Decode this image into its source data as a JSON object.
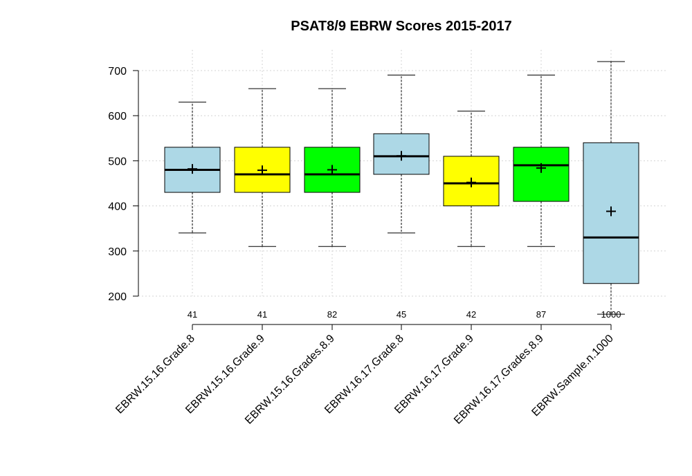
{
  "chart_data": {
    "type": "box",
    "title": "PSAT8/9 EBRW Scores 2015-2017",
    "xlabel": "",
    "ylabel": "",
    "ylim": [
      200,
      720
    ],
    "yticks": [
      "200",
      "300",
      "400",
      "500",
      "600",
      "700"
    ],
    "grid": true,
    "series": [
      {
        "category": "EBRW.15.16.Grade.8",
        "n": "41",
        "color": "#add8e6",
        "min": 340,
        "q1": 430,
        "median": 480,
        "q3": 530,
        "max": 630,
        "mean": 482
      },
      {
        "category": "EBRW.15.16.Grade.9",
        "n": "41",
        "color": "#ffff00",
        "min": 310,
        "q1": 430,
        "median": 470,
        "q3": 530,
        "max": 660,
        "mean": 479
      },
      {
        "category": "EBRW.15.16.Grades.8.9",
        "n": "82",
        "color": "#00ff00",
        "min": 310,
        "q1": 430,
        "median": 470,
        "q3": 530,
        "max": 660,
        "mean": 480
      },
      {
        "category": "EBRW.16.17.Grade.8",
        "n": "45",
        "color": "#add8e6",
        "min": 340,
        "q1": 470,
        "median": 510,
        "q3": 560,
        "max": 690,
        "mean": 511
      },
      {
        "category": "EBRW.16.17.Grade.9",
        "n": "42",
        "color": "#ffff00",
        "min": 310,
        "q1": 400,
        "median": 450,
        "q3": 510,
        "max": 610,
        "mean": 452
      },
      {
        "category": "EBRW.16.17.Grades.8.9",
        "n": "87",
        "color": "#00ff00",
        "min": 310,
        "q1": 410,
        "median": 490,
        "q3": 530,
        "max": 690,
        "mean": 484
      },
      {
        "category": "EBRW.Sample.n.1000",
        "n": "1000",
        "color": "#add8e6",
        "min": 160,
        "q1": 228,
        "median": 330,
        "q3": 540,
        "max": 720,
        "mean": 388
      }
    ]
  }
}
